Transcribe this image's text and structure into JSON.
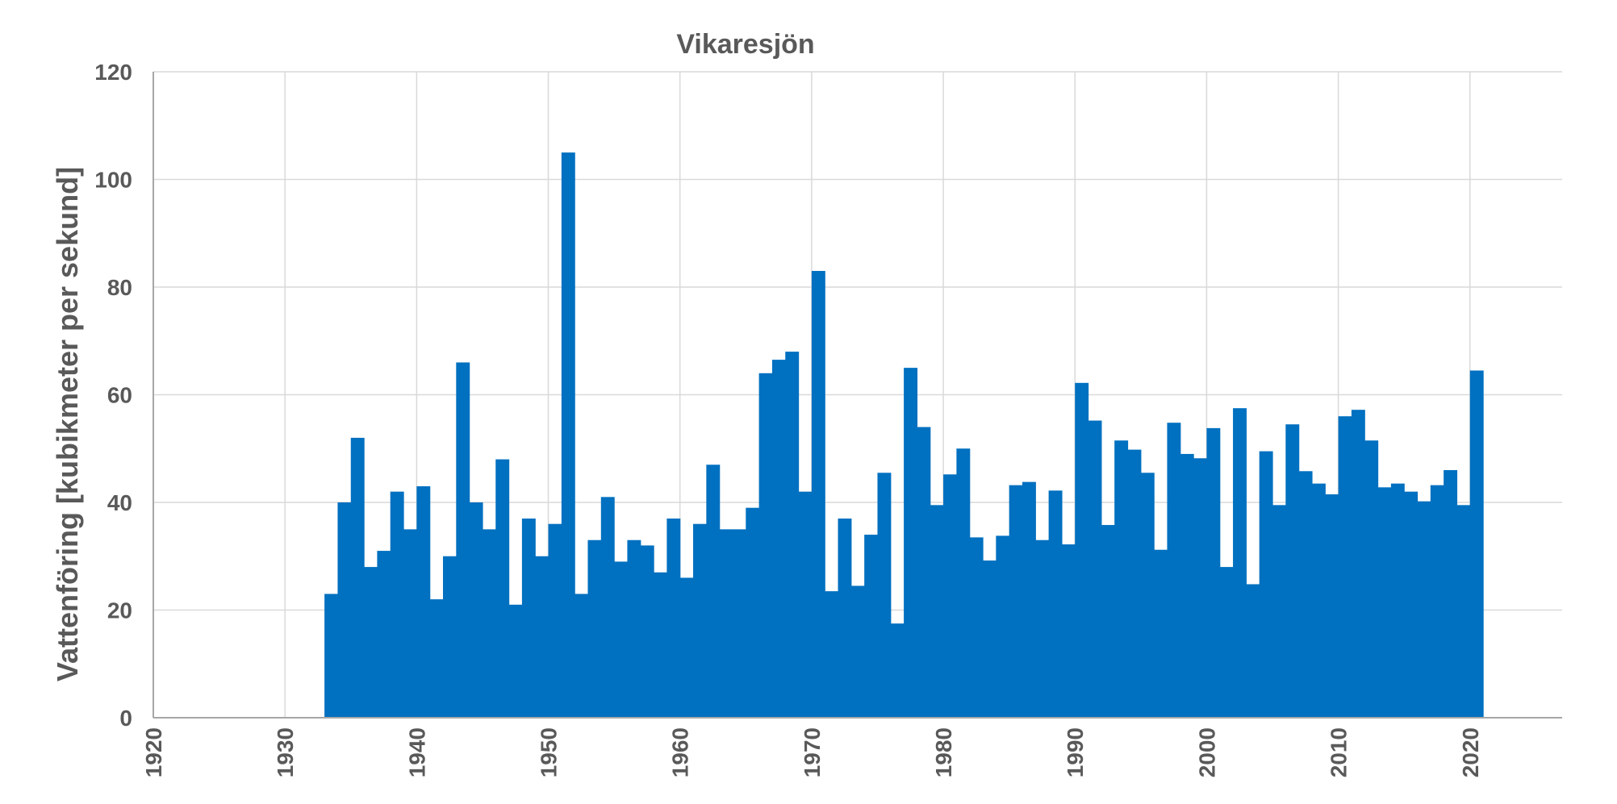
{
  "chart_data": {
    "type": "bar",
    "title": "Vikaresjön",
    "xlabel": "",
    "ylabel": "Vattenföring [kubikmeter per sekund]",
    "xlim": [
      1920,
      2027
    ],
    "ylim": [
      0,
      120
    ],
    "x_ticks": [
      1920,
      1930,
      1940,
      1950,
      1960,
      1970,
      1980,
      1990,
      2000,
      2010,
      2020
    ],
    "y_ticks": [
      0,
      20,
      40,
      60,
      80,
      100,
      120
    ],
    "grid": true,
    "legend": "none",
    "color": "#0070C0",
    "x": [
      1933,
      1934,
      1935,
      1936,
      1937,
      1938,
      1939,
      1940,
      1941,
      1942,
      1943,
      1944,
      1945,
      1946,
      1947,
      1948,
      1949,
      1950,
      1951,
      1952,
      1953,
      1954,
      1955,
      1956,
      1957,
      1958,
      1959,
      1960,
      1961,
      1962,
      1963,
      1964,
      1965,
      1966,
      1967,
      1968,
      1969,
      1970,
      1971,
      1972,
      1973,
      1974,
      1975,
      1976,
      1977,
      1978,
      1979,
      1980,
      1981,
      1982,
      1983,
      1984,
      1985,
      1986,
      1987,
      1988,
      1989,
      1990,
      1991,
      1992,
      1993,
      1994,
      1995,
      1996,
      1997,
      1998,
      1999,
      2000,
      2001,
      2002,
      2003,
      2004,
      2005,
      2006,
      2007,
      2008,
      2009,
      2010,
      2011,
      2012,
      2013,
      2014,
      2015,
      2016,
      2017,
      2018,
      2019,
      2020
    ],
    "values": [
      23,
      40,
      52,
      28,
      31,
      42,
      35,
      43,
      22,
      30,
      66,
      40,
      35,
      48,
      21,
      37,
      30,
      36,
      105,
      23,
      33,
      41,
      29,
      33,
      32,
      27,
      37,
      26,
      36,
      47,
      35,
      35,
      39,
      64,
      66.5,
      68,
      42,
      83,
      23.5,
      37,
      24.5,
      34,
      45.5,
      17.5,
      65,
      54,
      39.5,
      45.2,
      50,
      33.5,
      29.2,
      33.8,
      43.2,
      43.8,
      33,
      42.2,
      32.2,
      62.2,
      55.2,
      35.8,
      51.5,
      49.8,
      45.5,
      31.2,
      54.8,
      49,
      48.2,
      53.8,
      28,
      57.5,
      24.8,
      49.5,
      39.5,
      54.5,
      45.8,
      43.5,
      41.5,
      56,
      57.2,
      51.5,
      42.8,
      43.5,
      42,
      40.2,
      43.2,
      46,
      39.5,
      64.5
    ]
  }
}
